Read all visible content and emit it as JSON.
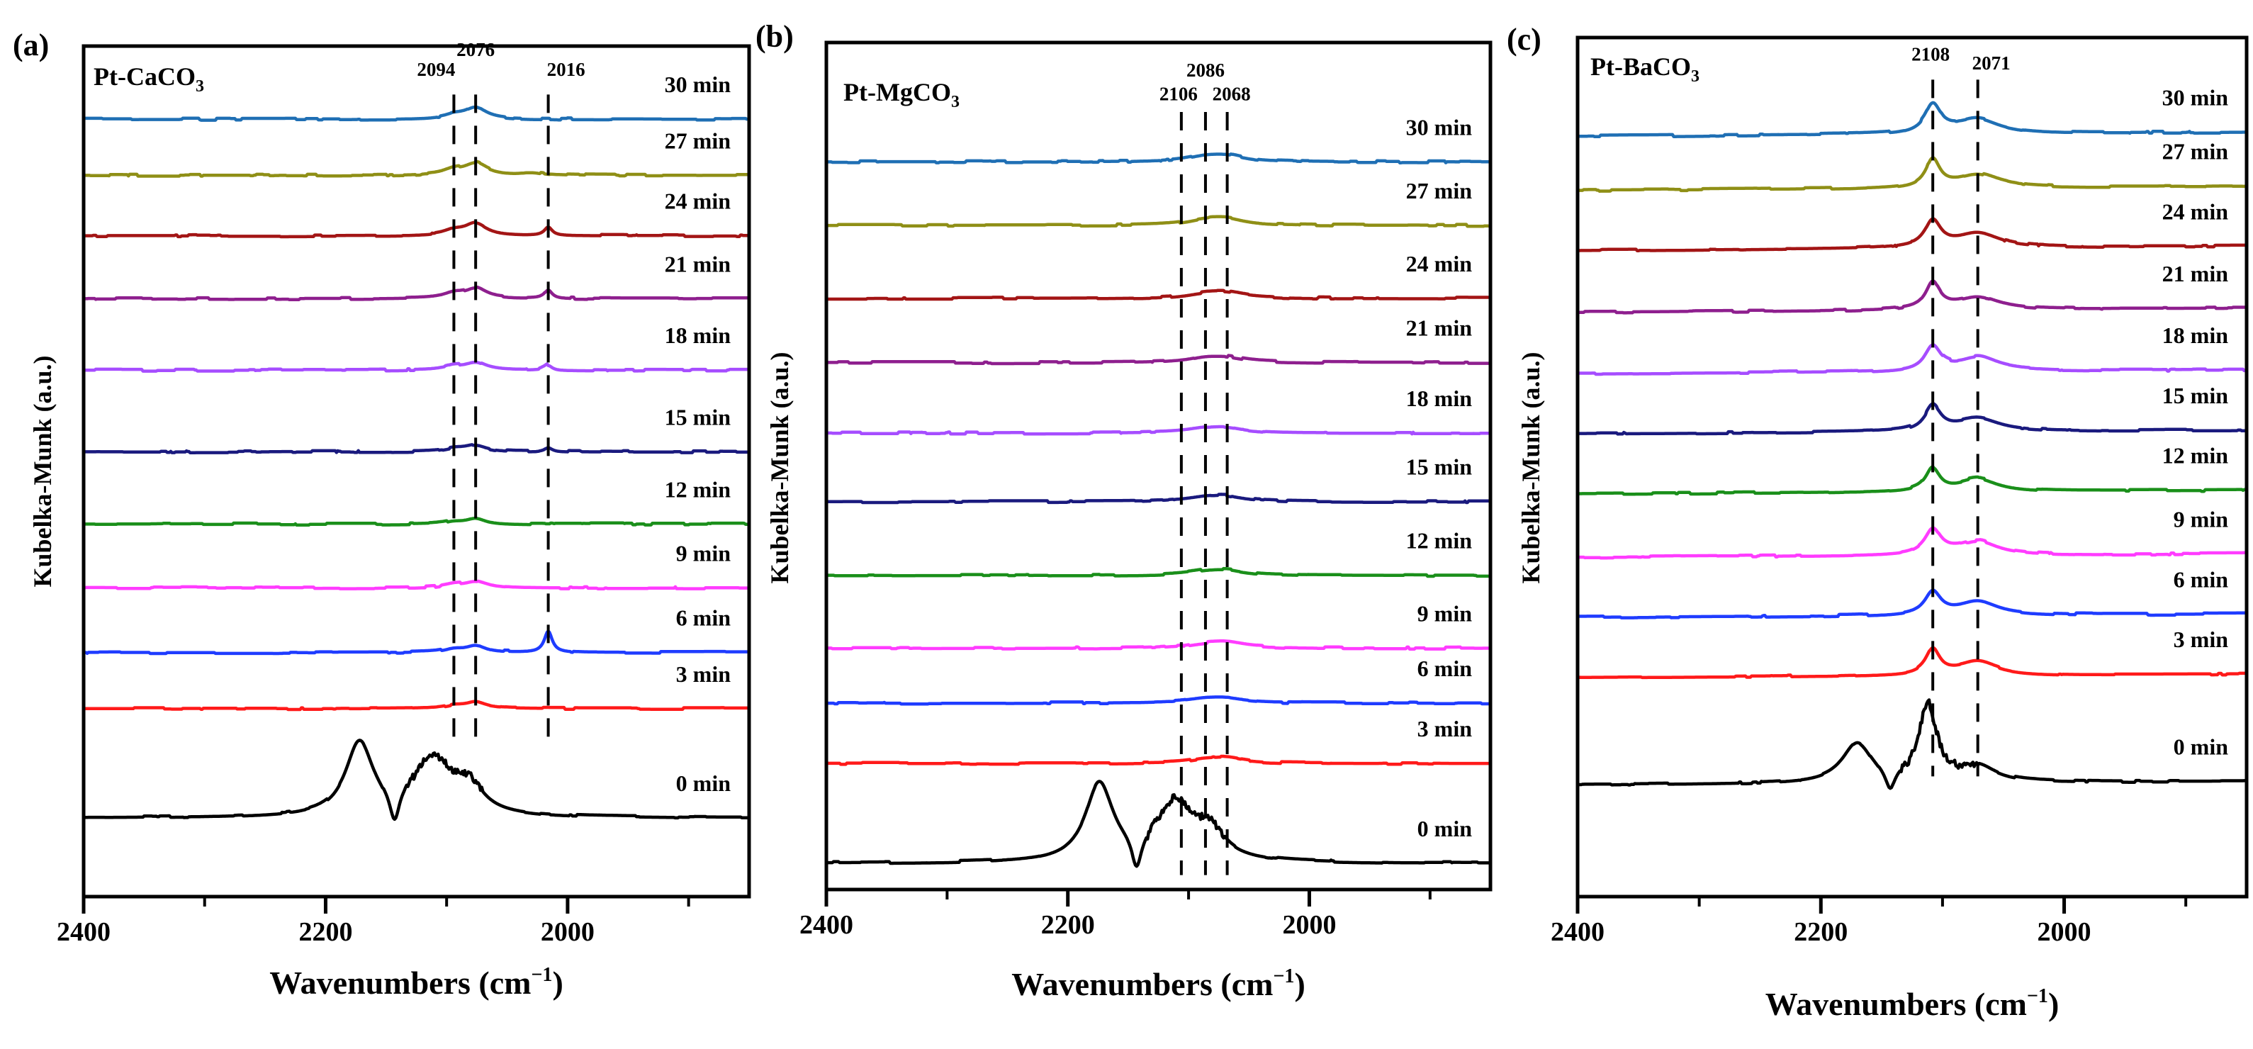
{
  "chart_data": [
    {
      "type": "line",
      "panel_label": "(a)",
      "sample": {
        "main": "Pt-CaCO",
        "sub": "3"
      },
      "xlabel": {
        "main": "Wavenumbers (cm",
        "sup": "−1",
        "end": ")"
      },
      "ylabel": "Kubelka-Munk (a.u.)",
      "xlim": [
        2400,
        1850
      ],
      "ylim": [
        0,
        100
      ],
      "xticks_major": [
        2400,
        2200,
        2000
      ],
      "xticks_major_labels": [
        "2400",
        "2200",
        "2000"
      ],
      "xticks_minor": [
        2300,
        2100,
        1900
      ],
      "peak_markers": [
        {
          "label": "2094",
          "x": 2094,
          "y_from": 94.3,
          "y_to": 17.7,
          "label_y": 96.5
        },
        {
          "label": "2076",
          "x": 2076,
          "y_from": 94.3,
          "y_to": 17.7,
          "label_y": 98.0
        },
        {
          "label": "2016",
          "x": 2016,
          "y_from": 94.3,
          "y_to": 17.7,
          "label_y": 96.5
        }
      ],
      "series": [
        {
          "name": "30 min",
          "color": "#1f6fb4",
          "offset": 91.4,
          "peaks": [
            [
              2094,
              0.4,
              10
            ],
            [
              2076,
              1.3,
              11
            ]
          ]
        },
        {
          "name": "27 min",
          "color": "#8f8f16",
          "offset": 84.8,
          "peaks": [
            [
              2094,
              0.5,
              10
            ],
            [
              2076,
              1.4,
              12
            ],
            [
              2030,
              0.3,
              12
            ]
          ]
        },
        {
          "name": "24 min",
          "color": "#a31515",
          "offset": 77.7,
          "peaks": [
            [
              2094,
              0.5,
              10
            ],
            [
              2076,
              1.4,
              11
            ],
            [
              2016,
              1.0,
              4
            ]
          ]
        },
        {
          "name": "21 min",
          "color": "#8e1f8e",
          "offset": 70.3,
          "peaks": [
            [
              2094,
              0.5,
              10
            ],
            [
              2076,
              1.2,
              11
            ],
            [
              2016,
              1.0,
              4
            ]
          ]
        },
        {
          "name": "18 min",
          "color": "#a64dff",
          "offset": 61.9,
          "peaks": [
            [
              2094,
              0.4,
              10
            ],
            [
              2076,
              0.9,
              11
            ],
            [
              2016,
              0.6,
              4
            ]
          ]
        },
        {
          "name": "15 min",
          "color": "#1a1a7e",
          "offset": 52.3,
          "peaks": [
            [
              2094,
              0.3,
              10
            ],
            [
              2076,
              0.7,
              11
            ],
            [
              2016,
              0.5,
              4
            ]
          ]
        },
        {
          "name": "12 min",
          "color": "#1a8f1a",
          "offset": 43.8,
          "peaks": [
            [
              2094,
              0.3,
              10
            ],
            [
              2076,
              0.7,
              10
            ]
          ]
        },
        {
          "name": "9 min",
          "color": "#ff3cff",
          "offset": 36.3,
          "peaks": [
            [
              2094,
              0.3,
              10
            ],
            [
              2076,
              0.8,
              12
            ]
          ]
        },
        {
          "name": "6 min",
          "color": "#1f3cff",
          "offset": 28.7,
          "peaks": [
            [
              2094,
              0.4,
              10
            ],
            [
              2076,
              0.8,
              10
            ],
            [
              2016,
              2.5,
              4
            ]
          ]
        },
        {
          "name": "3 min",
          "color": "#ff1a1a",
          "offset": 22.1,
          "peaks": [
            [
              2094,
              0.3,
              10
            ],
            [
              2076,
              0.7,
              10
            ]
          ]
        },
        {
          "name": "0 min",
          "color": "#000000",
          "offset": 9.25,
          "peaks": [
            [
              2172,
              8.5,
              14
            ],
            [
              2112,
              6.8,
              20
            ],
            [
              2082,
              3.0,
              14
            ],
            [
              2143,
              -4.0,
              5
            ]
          ],
          "noisy": true
        }
      ]
    },
    {
      "type": "line",
      "panel_label": "(b)",
      "sample": {
        "main": "Pt-MgCO",
        "sub": "3"
      },
      "xlabel": {
        "main": "Wavenumbers (cm",
        "sup": "−1",
        "end": ")"
      },
      "ylabel": "Kubelka-Munk (a.u.)",
      "xlim": [
        2400,
        1850
      ],
      "ylim": [
        0,
        100
      ],
      "xticks_major": [
        2400,
        2200,
        2000
      ],
      "xticks_major_labels": [
        "2400",
        "2200",
        "2000"
      ],
      "xticks_minor": [
        2300,
        2100,
        1900
      ],
      "peak_markers": [
        {
          "label": "2106",
          "x": 2106,
          "y_from": 91.8,
          "y_to": 1.7,
          "label_y": 93.2
        },
        {
          "label": "2086",
          "x": 2086,
          "y_from": 91.8,
          "y_to": 1.7,
          "label_y": 96.0
        },
        {
          "label": "2068",
          "x": 2068,
          "y_from": 91.8,
          "y_to": 1.7,
          "label_y": 93.2
        }
      ],
      "series": [
        {
          "name": "30 min",
          "color": "#1f6fb4",
          "offset": 85.9,
          "peaks": [
            [
              2086,
              0.6,
              20
            ],
            [
              2068,
              0.6,
              18
            ]
          ]
        },
        {
          "name": "27 min",
          "color": "#8f8f16",
          "offset": 78.4,
          "peaks": [
            [
              2086,
              0.6,
              20
            ],
            [
              2068,
              0.6,
              18
            ]
          ]
        },
        {
          "name": "24 min",
          "color": "#a31515",
          "offset": 69.8,
          "peaks": [
            [
              2086,
              0.5,
              20
            ],
            [
              2068,
              0.5,
              18
            ]
          ]
        },
        {
          "name": "21 min",
          "color": "#8e1f8e",
          "offset": 62.2,
          "peaks": [
            [
              2086,
              0.5,
              18
            ],
            [
              2068,
              0.5,
              18
            ]
          ]
        },
        {
          "name": "18 min",
          "color": "#a64dff",
          "offset": 53.9,
          "peaks": [
            [
              2086,
              0.4,
              20
            ],
            [
              2068,
              0.5,
              18
            ]
          ]
        },
        {
          "name": "15 min",
          "color": "#1a1a7e",
          "offset": 45.8,
          "peaks": [
            [
              2086,
              0.4,
              20
            ],
            [
              2068,
              0.5,
              18
            ]
          ]
        },
        {
          "name": "12 min",
          "color": "#1a8f1a",
          "offset": 37.1,
          "peaks": [
            [
              2086,
              0.4,
              20
            ],
            [
              2068,
              0.5,
              18
            ]
          ]
        },
        {
          "name": "9 min",
          "color": "#ff3cff",
          "offset": 28.5,
          "peaks": [
            [
              2086,
              0.4,
              20
            ],
            [
              2068,
              0.5,
              18
            ]
          ]
        },
        {
          "name": "6 min",
          "color": "#1f3cff",
          "offset": 22.0,
          "peaks": [
            [
              2086,
              0.4,
              20
            ],
            [
              2068,
              0.4,
              18
            ]
          ]
        },
        {
          "name": "3 min",
          "color": "#ff1a1a",
          "offset": 14.9,
          "peaks": [
            [
              2086,
              0.4,
              18
            ],
            [
              2068,
              0.5,
              16
            ]
          ]
        },
        {
          "name": "0 min",
          "color": "#000000",
          "offset": 3.1,
          "peaks": [
            [
              2174,
              9.0,
              14
            ],
            [
              2112,
              6.8,
              20
            ],
            [
              2082,
              3.0,
              14
            ],
            [
              2143,
              -4.0,
              5
            ]
          ],
          "noisy": true
        }
      ]
    },
    {
      "type": "line",
      "panel_label": "(c)",
      "sample": {
        "main": "Pt-BaCO",
        "sub": "3"
      },
      "xlabel": {
        "main": "Wavenumbers (cm",
        "sup": "−1",
        "end": ")"
      },
      "ylabel": "Kubelka-Munk (a.u.)",
      "xlim": [
        2400,
        1850
      ],
      "ylim": [
        0,
        100
      ],
      "xticks_major": [
        2400,
        2200,
        2000
      ],
      "xticks_major_labels": [
        "2400",
        "2200",
        "2000"
      ],
      "xticks_minor": [
        2300,
        2100,
        1900
      ],
      "peak_markers": [
        {
          "label": "2108",
          "x": 2108,
          "y_from": 95.1,
          "y_to": 14.0,
          "label_y": 97.3
        },
        {
          "label": "2071",
          "x": 2071,
          "y_from": 95.1,
          "y_to": 14.0,
          "label_y": 96.3
        }
      ],
      "series": [
        {
          "name": "30 min",
          "color": "#1f6fb4",
          "offset": 89.0,
          "peaks": [
            [
              2108,
              3.2,
              8
            ],
            [
              2071,
              1.7,
              22
            ]
          ],
          "tilt": 0.5
        },
        {
          "name": "27 min",
          "color": "#8f8f16",
          "offset": 82.7,
          "peaks": [
            [
              2108,
              3.2,
              7
            ],
            [
              2071,
              1.6,
              22
            ]
          ],
          "tilt": 0.5
        },
        {
          "name": "24 min",
          "color": "#a31515",
          "offset": 75.7,
          "peaks": [
            [
              2108,
              3.0,
              8
            ],
            [
              2071,
              1.7,
              22
            ]
          ],
          "tilt": 0.5
        },
        {
          "name": "21 min",
          "color": "#8e1f8e",
          "offset": 68.5,
          "peaks": [
            [
              2108,
              3.0,
              7
            ],
            [
              2071,
              1.5,
              22
            ]
          ],
          "tilt": 0.5
        },
        {
          "name": "18 min",
          "color": "#a64dff",
          "offset": 61.3,
          "peaks": [
            [
              2108,
              2.8,
              8
            ],
            [
              2071,
              1.6,
              20
            ]
          ],
          "tilt": 0.4
        },
        {
          "name": "15 min",
          "color": "#1a1a7e",
          "offset": 54.3,
          "peaks": [
            [
              2108,
              2.8,
              8
            ],
            [
              2071,
              1.5,
              22
            ]
          ],
          "tilt": 0.4
        },
        {
          "name": "12 min",
          "color": "#1a8f1a",
          "offset": 47.3,
          "peaks": [
            [
              2108,
              2.6,
              7
            ],
            [
              2071,
              1.5,
              20
            ]
          ],
          "tilt": 0.4
        },
        {
          "name": "9 min",
          "color": "#ff3cff",
          "offset": 39.9,
          "peaks": [
            [
              2108,
              2.8,
              8
            ],
            [
              2071,
              1.6,
              20
            ]
          ],
          "tilt": 0.4
        },
        {
          "name": "6 min",
          "color": "#1f3cff",
          "offset": 32.9,
          "peaks": [
            [
              2108,
              2.6,
              8
            ],
            [
              2071,
              1.6,
              20
            ]
          ],
          "tilt": 0.4
        },
        {
          "name": "3 min",
          "color": "#ff1a1a",
          "offset": 25.9,
          "peaks": [
            [
              2108,
              2.9,
              7
            ],
            [
              2071,
              1.6,
              20
            ]
          ],
          "tilt": 0.4
        },
        {
          "name": "0 min",
          "color": "#000000",
          "offset": 13.4,
          "peaks": [
            [
              2170,
              4.6,
              15
            ],
            [
              2112,
              9.0,
              9
            ],
            [
              2071,
              1.8,
              18
            ],
            [
              2143,
              -2.5,
              5
            ]
          ],
          "noisy": true,
          "tilt": 0.4
        }
      ]
    }
  ]
}
